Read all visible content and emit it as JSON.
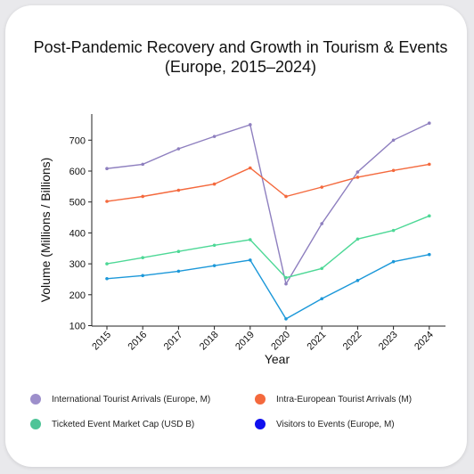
{
  "chart_data": {
    "type": "line",
    "title": "Post-Pandemic Recovery and Growth in Tourism & Events",
    "subtitle": "(Europe, 2015–2024)",
    "xlabel": "Year",
    "ylabel": "Volume (Millions / Billions)",
    "x": [
      "2015",
      "2016",
      "2017",
      "2018",
      "2019",
      "2020",
      "2021",
      "2022",
      "2023",
      "2024"
    ],
    "yticks": [
      100,
      200,
      300,
      400,
      500,
      600,
      700
    ],
    "ylim": [
      100,
      780
    ],
    "grid": false,
    "legend_position": "bottom",
    "series": [
      {
        "name": "International Tourist Arrivals (Europe, M)",
        "color": "#8e7fbf",
        "values": [
          608,
          622,
          672,
          712,
          750,
          235,
          430,
          597,
          700,
          755
        ]
      },
      {
        "name": "Intra-European Tourist Arrivals (M)",
        "color": "#f4693d",
        "values": [
          502,
          518,
          538,
          558,
          610,
          518,
          548,
          580,
          602,
          622
        ]
      },
      {
        "name": "Ticketed Event Market Cap (USD B)",
        "color": "#4dd896",
        "values": [
          300,
          320,
          340,
          360,
          378,
          255,
          285,
          380,
          408,
          455
        ]
      },
      {
        "name": "Visitors to Events (Europe, M)",
        "color": "#1c98d9",
        "values": [
          252,
          262,
          276,
          294,
          312,
          122,
          187,
          246,
          307,
          330
        ]
      }
    ]
  },
  "legend_dot_colors": [
    "#9d8fcb",
    "#f4693d",
    "#4ec497",
    "#1010ee"
  ]
}
